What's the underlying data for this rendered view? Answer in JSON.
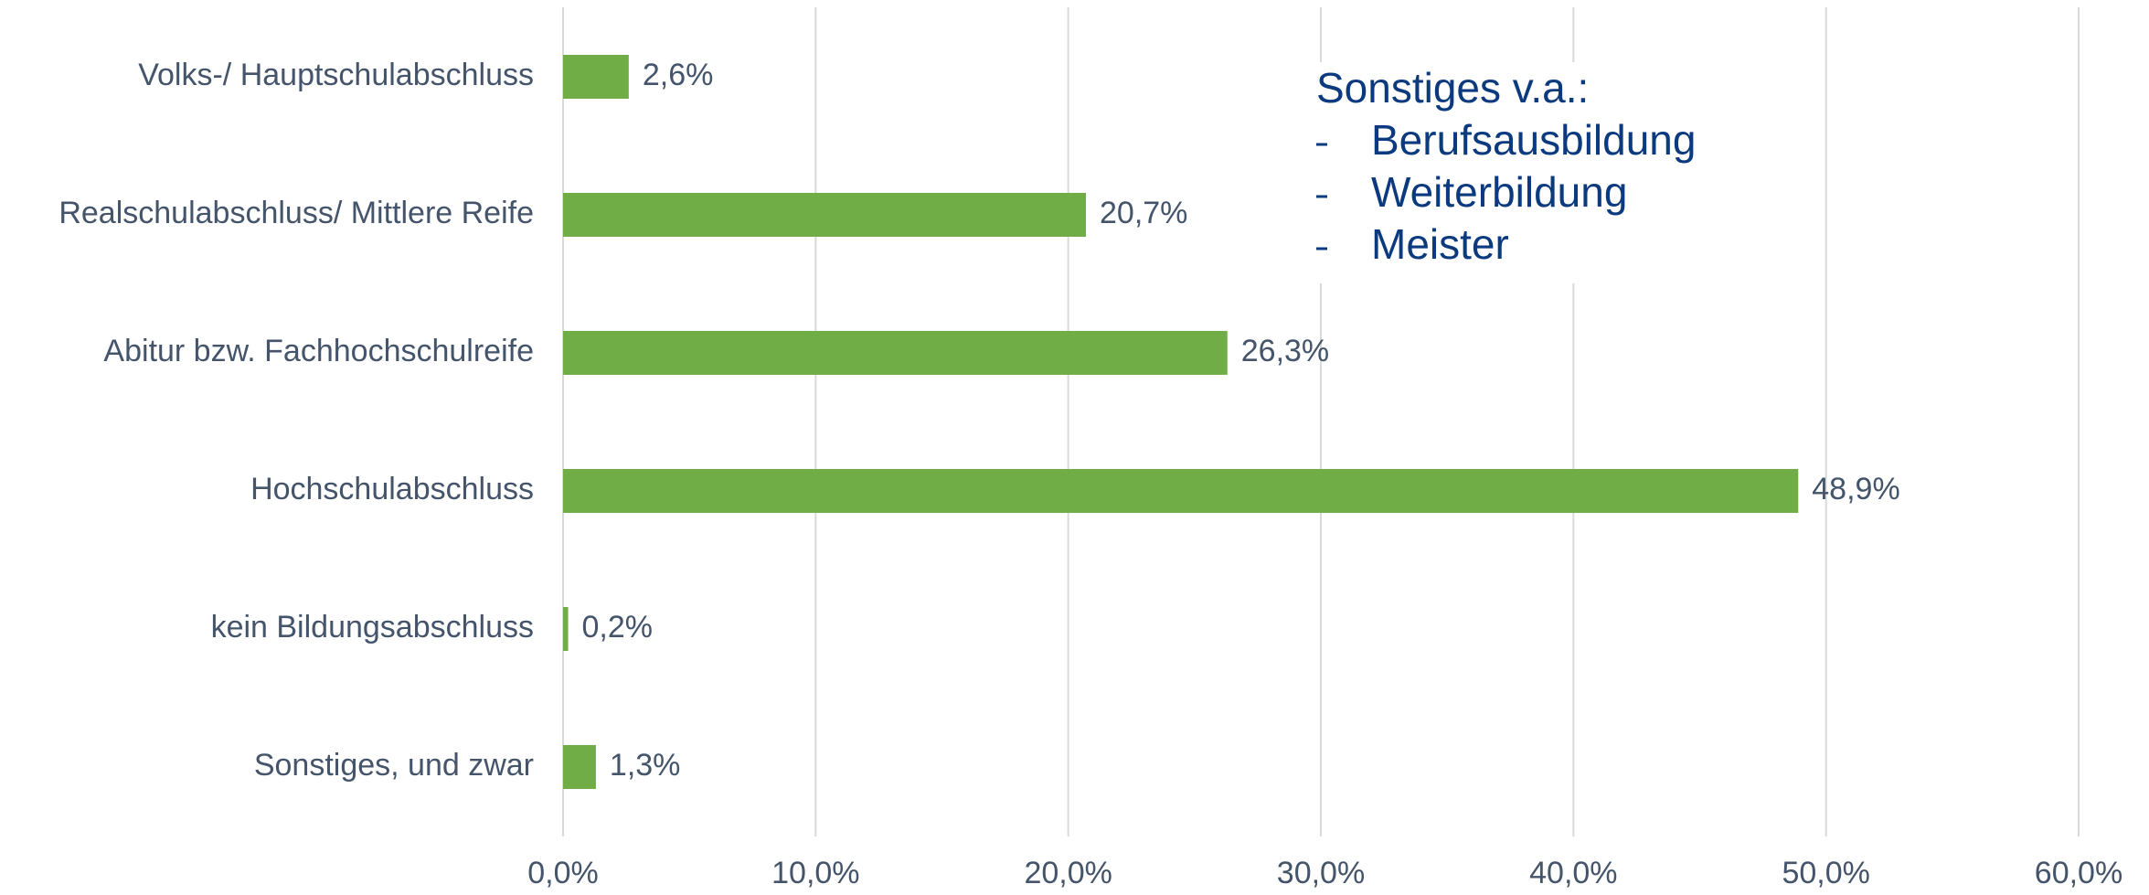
{
  "chart_data": {
    "type": "barh",
    "categories": [
      "Volks-/ Hauptschulabschluss",
      "Realschulabschluss/ Mittlere Reife",
      "Abitur bzw. Fachhochschulreife",
      "Hochschulabschluss",
      "kein Bildungsabschluss",
      "Sonstiges, und zwar"
    ],
    "values": [
      2.6,
      20.7,
      26.3,
      48.9,
      0.2,
      1.3
    ],
    "value_labels": [
      "2,6%",
      "20,7%",
      "26,3%",
      "48,9%",
      "0,2%",
      "1,3%"
    ],
    "color": "#70ad47",
    "xlim": [
      0,
      60
    ],
    "xticks": [
      {
        "value": 0,
        "label": "0,0%"
      },
      {
        "value": 10,
        "label": "10,0%"
      },
      {
        "value": 20,
        "label": "20,0%"
      },
      {
        "value": 30,
        "label": "30,0%"
      },
      {
        "value": 40,
        "label": "40,0%"
      },
      {
        "value": 50,
        "label": "50,0%"
      },
      {
        "value": 60,
        "label": "60,0%"
      }
    ],
    "grid": true,
    "annotation": {
      "title": "Sonstiges v.a.:",
      "items": [
        "Berufsausbildung",
        "Weiterbildung",
        "Meister"
      ]
    }
  }
}
